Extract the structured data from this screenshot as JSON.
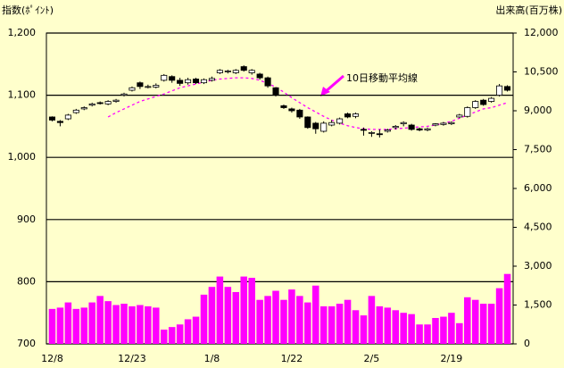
{
  "chart_data": {
    "type": "candlestick",
    "y_axis_title": "指数(ﾎﾟｲﾝﾄ)",
    "y2_axis_title": "出来高(百万株)",
    "categories": [
      "12/8",
      null,
      null,
      null,
      null,
      null,
      null,
      null,
      null,
      null,
      "12/23",
      null,
      null,
      null,
      null,
      null,
      null,
      null,
      null,
      null,
      "1/8",
      null,
      null,
      null,
      null,
      null,
      null,
      null,
      null,
      null,
      "1/22",
      null,
      null,
      null,
      null,
      null,
      null,
      null,
      null,
      null,
      "2/5",
      null,
      null,
      null,
      null,
      null,
      null,
      null,
      null,
      null,
      "2/19",
      null,
      null,
      null,
      null,
      null,
      null,
      null
    ],
    "open": [
      1065,
      1058,
      1062,
      1072,
      1078,
      1084,
      1088,
      1086,
      1090,
      1100,
      1108,
      1120,
      1114,
      1113,
      1124,
      1130,
      1124,
      1120,
      1126,
      1120,
      1124,
      1136,
      1138,
      1136,
      1146,
      1136,
      1134,
      1128,
      1112,
      1083,
      1078,
      1076,
      1065,
      1055,
      1042,
      1052,
      1055,
      1070,
      1066,
      1045,
      1040,
      1038,
      1042,
      1048,
      1054,
      1052,
      1046,
      1044,
      1052,
      1053,
      1054,
      1065,
      1066,
      1080,
      1092,
      1090,
      1100,
      1114
    ],
    "high": [
      1066,
      1060,
      1070,
      1078,
      1082,
      1088,
      1090,
      1092,
      1094,
      1104,
      1114,
      1122,
      1117,
      1119,
      1134,
      1132,
      1128,
      1128,
      1128,
      1127,
      1130,
      1142,
      1141,
      1142,
      1148,
      1142,
      1136,
      1130,
      1113,
      1085,
      1080,
      1078,
      1066,
      1057,
      1058,
      1060,
      1064,
      1072,
      1072,
      1048,
      1042,
      1045,
      1046,
      1052,
      1058,
      1054,
      1048,
      1048,
      1055,
      1057,
      1058,
      1070,
      1082,
      1092,
      1094,
      1097,
      1118,
      1116
    ],
    "low": [
      1058,
      1050,
      1060,
      1070,
      1076,
      1082,
      1085,
      1084,
      1088,
      1098,
      1106,
      1110,
      1111,
      1111,
      1122,
      1120,
      1115,
      1117,
      1118,
      1118,
      1122,
      1134,
      1135,
      1134,
      1138,
      1133,
      1125,
      1112,
      1098,
      1078,
      1072,
      1062,
      1046,
      1038,
      1040,
      1050,
      1053,
      1063,
      1063,
      1035,
      1033,
      1032,
      1040,
      1045,
      1050,
      1043,
      1042,
      1042,
      1050,
      1051,
      1052,
      1063,
      1064,
      1078,
      1083,
      1088,
      1098,
      1106
    ],
    "close": [
      1060,
      1056,
      1068,
      1076,
      1080,
      1086,
      1087,
      1090,
      1092,
      1102,
      1112,
      1114,
      1114,
      1116,
      1132,
      1124,
      1119,
      1125,
      1120,
      1125,
      1127,
      1140,
      1139,
      1140,
      1140,
      1140,
      1128,
      1115,
      1100,
      1080,
      1075,
      1065,
      1048,
      1046,
      1055,
      1056,
      1062,
      1065,
      1070,
      1044,
      1040,
      1037,
      1044,
      1050,
      1056,
      1045,
      1044,
      1046,
      1054,
      1055,
      1056,
      1068,
      1080,
      1090,
      1085,
      1095,
      1115,
      1108
    ],
    "up_color": "#ffffff",
    "down_color": "#000000",
    "volume": {
      "color": "#ff00ff",
      "axis": "y2",
      "values": [
        1350,
        1400,
        1600,
        1350,
        1400,
        1600,
        1850,
        1650,
        1500,
        1550,
        1450,
        1500,
        1450,
        1400,
        550,
        650,
        750,
        950,
        1050,
        1900,
        2200,
        2600,
        2200,
        2000,
        2600,
        2550,
        1700,
        1850,
        2050,
        1700,
        2100,
        1850,
        1600,
        2250,
        1450,
        1450,
        1550,
        1700,
        1300,
        1100,
        1850,
        1450,
        1400,
        1300,
        1200,
        1150,
        750,
        750,
        1000,
        1050,
        1200,
        800,
        1800,
        1700,
        1550,
        1550,
        2150,
        2700
      ]
    },
    "moving_average": {
      "color": "#ff00ff",
      "annotation": "10日移動平均線",
      "values": [
        null,
        null,
        null,
        null,
        null,
        null,
        null,
        1065,
        1072,
        1078,
        1084,
        1090,
        1094,
        1098,
        1102,
        1107,
        1112,
        1115,
        1118,
        1121,
        1124,
        1126,
        1127,
        1128,
        1128,
        1127,
        1124,
        1119,
        1113,
        1105,
        1096,
        1088,
        1080,
        1073,
        1066,
        1060,
        1055,
        1051,
        1048,
        1046,
        1045,
        1045,
        1045,
        1046,
        1047,
        1048,
        1049,
        1050,
        1052,
        1055,
        1058,
        1063,
        1068,
        1073,
        1078,
        1080,
        1084,
        1088
      ]
    },
    "ylim": [
      700,
      1200
    ],
    "yticks": [
      700,
      800,
      900,
      {
        "value": 1000,
        "label": "1,000"
      },
      {
        "value": 1100,
        "label": "1,100"
      },
      {
        "value": 1200,
        "label": "1,200"
      }
    ],
    "y2lim": [
      0,
      12000
    ],
    "y2ticks": [
      0,
      {
        "value": 1500,
        "label": "1,500"
      },
      {
        "value": 3000,
        "label": "3,000"
      },
      {
        "value": 4500,
        "label": "4,500"
      },
      {
        "value": 6000,
        "label": "6,000"
      },
      {
        "value": 7500,
        "label": "7,500"
      },
      {
        "value": 9000,
        "label": "9,000"
      },
      {
        "value": 10500,
        "label": "10,500"
      },
      {
        "value": 12000,
        "label": "12,000"
      }
    ],
    "grid": true
  }
}
